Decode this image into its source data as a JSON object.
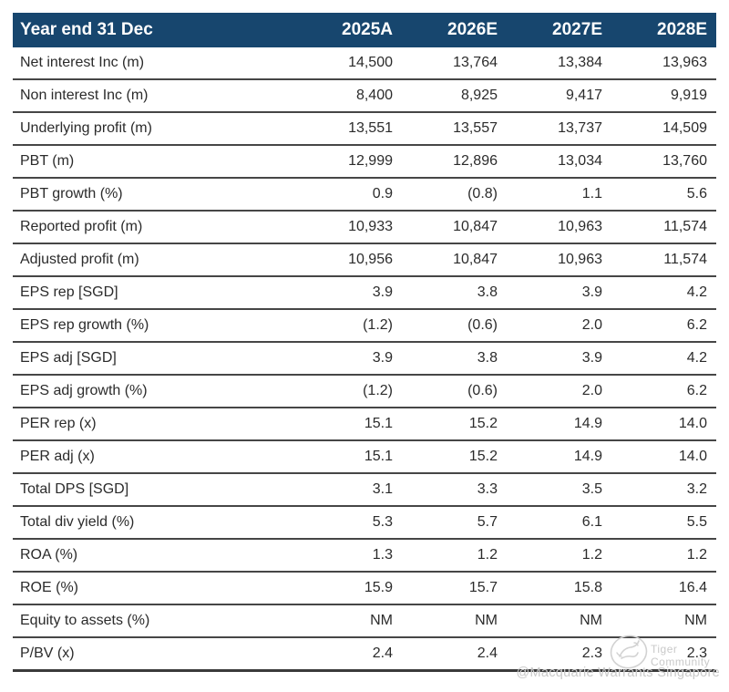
{
  "table": {
    "header": {
      "label": "Year end 31 Dec",
      "columns": [
        "2025A",
        "2026E",
        "2027E",
        "2028E"
      ]
    },
    "rows": [
      {
        "label": "Net interest Inc (m)",
        "values": [
          "14,500",
          "13,764",
          "13,384",
          "13,963"
        ]
      },
      {
        "label": "Non interest Inc (m)",
        "values": [
          "8,400",
          "8,925",
          "9,417",
          "9,919"
        ]
      },
      {
        "label": "Underlying profit (m)",
        "values": [
          "13,551",
          "13,557",
          "13,737",
          "14,509"
        ]
      },
      {
        "label": "PBT (m)",
        "values": [
          "12,999",
          "12,896",
          "13,034",
          "13,760"
        ]
      },
      {
        "label": "PBT growth (%)",
        "values": [
          "0.9",
          "(0.8)",
          "1.1",
          "5.6"
        ]
      },
      {
        "label": "Reported profit (m)",
        "values": [
          "10,933",
          "10,847",
          "10,963",
          "11,574"
        ]
      },
      {
        "label": "Adjusted profit (m)",
        "values": [
          "10,956",
          "10,847",
          "10,963",
          "11,574"
        ]
      },
      {
        "label": "EPS rep [SGD]",
        "values": [
          "3.9",
          "3.8",
          "3.9",
          "4.2"
        ]
      },
      {
        "label": "EPS rep growth (%)",
        "values": [
          "(1.2)",
          "(0.6)",
          "2.0",
          "6.2"
        ]
      },
      {
        "label": "EPS adj [SGD]",
        "values": [
          "3.9",
          "3.8",
          "3.9",
          "4.2"
        ]
      },
      {
        "label": "EPS adj growth (%)",
        "values": [
          "(1.2)",
          "(0.6)",
          "2.0",
          "6.2"
        ]
      },
      {
        "label": "PER rep (x)",
        "values": [
          "15.1",
          "15.2",
          "14.9",
          "14.0"
        ]
      },
      {
        "label": "PER adj (x)",
        "values": [
          "15.1",
          "15.2",
          "14.9",
          "14.0"
        ]
      },
      {
        "label": "Total DPS [SGD]",
        "values": [
          "3.1",
          "3.3",
          "3.5",
          "3.2"
        ]
      },
      {
        "label": "Total div yield (%)",
        "values": [
          "5.3",
          "5.7",
          "6.1",
          "5.5"
        ]
      },
      {
        "label": "ROA (%)",
        "values": [
          "1.3",
          "1.2",
          "1.2",
          "1.2"
        ]
      },
      {
        "label": "ROE (%)",
        "values": [
          "15.9",
          "15.7",
          "15.8",
          "16.4"
        ]
      },
      {
        "label": "Equity to assets (%)",
        "values": [
          "NM",
          "NM",
          "NM",
          "NM"
        ]
      },
      {
        "label": "P/BV (x)",
        "values": [
          "2.4",
          "2.4",
          "2.3",
          "2.3"
        ]
      }
    ]
  },
  "watermark": {
    "community_label": "Tiger Community",
    "handle": "@Macquarie Warrants Singapore",
    "logo_icon": "tiger-circle-logo"
  },
  "colors": {
    "header_bg": "#17466E",
    "header_text": "#FFFFFF",
    "row_text": "#2B2B2B",
    "separator": "#464646",
    "watermark": "#C9C9C9"
  }
}
